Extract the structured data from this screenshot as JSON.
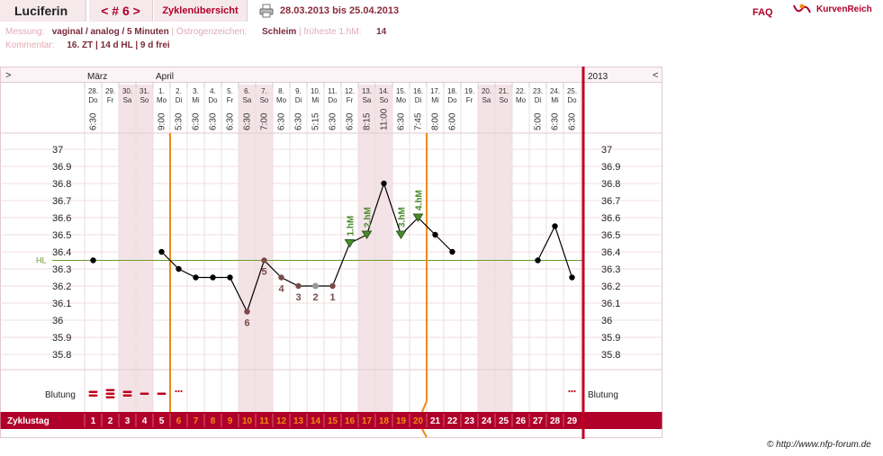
{
  "header": {
    "name": "Luciferin",
    "nav_label": "< # 6 >",
    "overview_label": "Zyklenübersicht",
    "date_range": "28.03.2013 bis 25.04.2013",
    "faq_label": "FAQ",
    "logo_text": "KurvenReich"
  },
  "info": {
    "messung_label": "Messung:",
    "messung_value": "vaginal / analog / 5 Minuten",
    "oestrogen_label": "Östrogenzeichen:",
    "oestrogen_value": "Schleim",
    "fruehest_label": "früheste 1.hM:",
    "fruehest_value": "14",
    "kommentar_label": "Kommentar:",
    "kommentar_value": "16. ZT | 14 d HL | 9 d frei"
  },
  "chart_labels": {
    "left_arrow": ">",
    "right_arrow": "<",
    "year": "2013",
    "month_1": "März",
    "month_2": "April",
    "hl_label": "HL",
    "bleeding_label": "Blutung",
    "cycle_label": "Zyklustag",
    "copyright": "© http://www.nfp-forum.de"
  },
  "chart_data": {
    "type": "line",
    "days": [
      {
        "date": "28.",
        "wd": "Do",
        "time": "6:30",
        "temp": 36.35,
        "weekend": false
      },
      {
        "date": "29.",
        "wd": "Fr",
        "time": "",
        "temp": null,
        "weekend": false
      },
      {
        "date": "30.",
        "wd": "Sa",
        "time": "",
        "temp": null,
        "weekend": true
      },
      {
        "date": "31.",
        "wd": "So",
        "time": "",
        "temp": null,
        "weekend": true
      },
      {
        "date": "1.",
        "wd": "Mo",
        "time": "9:00",
        "temp": 36.4,
        "weekend": false
      },
      {
        "date": "2.",
        "wd": "Di",
        "time": "5:30",
        "temp": 36.3,
        "weekend": false
      },
      {
        "date": "3.",
        "wd": "Mi",
        "time": "6:30",
        "temp": 36.25,
        "weekend": false
      },
      {
        "date": "4.",
        "wd": "Do",
        "time": "6:30",
        "temp": 36.25,
        "weekend": false
      },
      {
        "date": "5.",
        "wd": "Fr",
        "time": "6:30",
        "temp": 36.25,
        "weekend": false
      },
      {
        "date": "6.",
        "wd": "Sa",
        "time": "6:30",
        "temp": 36.05,
        "weekend": true
      },
      {
        "date": "7.",
        "wd": "So",
        "time": "7:00",
        "temp": 36.35,
        "weekend": true
      },
      {
        "date": "8.",
        "wd": "Mo",
        "time": "6:30",
        "temp": 36.25,
        "weekend": false
      },
      {
        "date": "9.",
        "wd": "Di",
        "time": "6:30",
        "temp": 36.2,
        "weekend": false
      },
      {
        "date": "10.",
        "wd": "Mi",
        "time": "5:15",
        "temp": 36.2,
        "weekend": false
      },
      {
        "date": "11.",
        "wd": "Do",
        "time": "6:30",
        "temp": 36.2,
        "weekend": false
      },
      {
        "date": "12.",
        "wd": "Fr",
        "time": "6:30",
        "temp": 36.45,
        "weekend": false
      },
      {
        "date": "13.",
        "wd": "Sa",
        "time": "8:15",
        "temp": 36.5,
        "weekend": true
      },
      {
        "date": "14.",
        "wd": "So",
        "time": "11:00",
        "temp": 36.8,
        "weekend": true
      },
      {
        "date": "15.",
        "wd": "Mo",
        "time": "6:30",
        "temp": 36.5,
        "weekend": false
      },
      {
        "date": "16.",
        "wd": "Di",
        "time": "7:45",
        "temp": 36.6,
        "weekend": false
      },
      {
        "date": "17.",
        "wd": "Mi",
        "time": "8:00",
        "temp": 36.5,
        "weekend": false
      },
      {
        "date": "18.",
        "wd": "Do",
        "time": "6:00",
        "temp": 36.4,
        "weekend": false
      },
      {
        "date": "19.",
        "wd": "Fr",
        "time": "",
        "temp": null,
        "weekend": false
      },
      {
        "date": "20.",
        "wd": "Sa",
        "time": "",
        "temp": null,
        "weekend": true
      },
      {
        "date": "21.",
        "wd": "So",
        "time": "",
        "temp": null,
        "weekend": true
      },
      {
        "date": "22.",
        "wd": "Mo",
        "time": "",
        "temp": null,
        "weekend": false
      },
      {
        "date": "23.",
        "wd": "Di",
        "time": "5:00",
        "temp": 36.35,
        "weekend": false
      },
      {
        "date": "24.",
        "wd": "Mi",
        "time": "6:30",
        "temp": 36.55,
        "weekend": false
      },
      {
        "date": "25.",
        "wd": "Do",
        "time": "6:30",
        "temp": 36.25,
        "weekend": false
      }
    ],
    "ylim": [
      35.8,
      37.0
    ],
    "yticks": [
      "37",
      "36.9",
      "36.8",
      "36.7",
      "36.6",
      "36.5",
      "36.4",
      "36.3",
      "36.2",
      "36.1",
      "36",
      "35.9",
      "35.8"
    ],
    "hl_value": 36.35,
    "low_labels": [
      {
        "day": 10,
        "text": "6"
      },
      {
        "day": 11,
        "text": "5"
      },
      {
        "day": 12,
        "text": "4"
      },
      {
        "day": 13,
        "text": "3"
      },
      {
        "day": 14,
        "text": "2"
      },
      {
        "day": 15,
        "text": "1"
      }
    ],
    "high_labels": [
      {
        "day": 16,
        "text": "1.hM"
      },
      {
        "day": 17,
        "text": "2.hM"
      },
      {
        "day": 19,
        "text": "3.hM"
      },
      {
        "day": 20,
        "text": "4.hM"
      }
    ],
    "bleeding": [
      {
        "day": 1,
        "level": 3
      },
      {
        "day": 2,
        "level": 4
      },
      {
        "day": 3,
        "level": 3
      },
      {
        "day": 4,
        "level": 1
      },
      {
        "day": 5,
        "level": 1
      },
      {
        "day": 6,
        "level": 0
      },
      {
        "day": 29,
        "level": 0
      }
    ],
    "cycle_days": [
      "1",
      "2",
      "3",
      "4",
      "5",
      "6",
      "7",
      "8",
      "9",
      "10",
      "11",
      "12",
      "13",
      "14",
      "15",
      "16",
      "17",
      "18",
      "19",
      "20",
      "21",
      "22",
      "23",
      "24",
      "25",
      "26",
      "27",
      "28",
      "29"
    ],
    "infertile_until_day": 5,
    "fertile_until_day": 20,
    "colors": {
      "accent": "#b0002a",
      "orange": "#f08a10",
      "curve": "#000000",
      "hl_line": "#6a9a2a",
      "high_marker": "#4a8a2a",
      "low_marker": "#7a4a4a",
      "weekend_bg": "#f3e3e7",
      "grid": "#f0dde1"
    }
  }
}
